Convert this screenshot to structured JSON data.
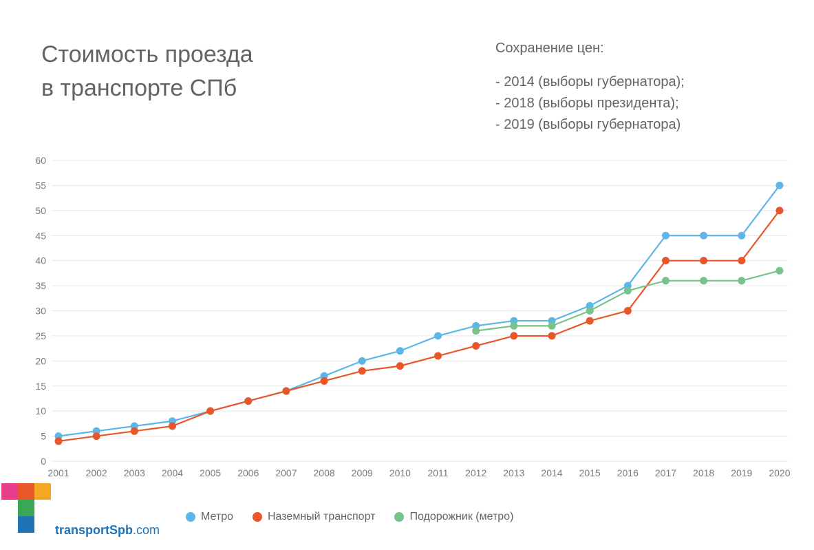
{
  "title_line1": "Стоимость проезда",
  "title_line2": "в транспорте СПб",
  "notes": {
    "heading": "Сохранение цен:",
    "items": [
      "- 2014 (выборы губернатора);",
      "- 2018 (выборы президента);",
      "- 2019 (выборы губернатора)"
    ]
  },
  "chart": {
    "type": "line",
    "background_color": "#ffffff",
    "grid_color": "#e6e6e6",
    "axis_text_color": "#7a7a7a",
    "axis_fontsize": 14,
    "xlim": [
      2001,
      2020
    ],
    "ylim": [
      0,
      60
    ],
    "ytick_step": 5,
    "yticks": [
      0,
      5,
      10,
      15,
      20,
      25,
      30,
      35,
      40,
      45,
      50,
      55,
      60
    ],
    "categories": [
      2001,
      2002,
      2003,
      2004,
      2005,
      2006,
      2007,
      2008,
      2009,
      2010,
      2011,
      2012,
      2013,
      2014,
      2015,
      2016,
      2017,
      2018,
      2019,
      2020
    ],
    "marker_radius": 5.5,
    "line_width": 2.2,
    "series": [
      {
        "key": "metro",
        "label": "Метро",
        "color": "#5cb6e8",
        "values": [
          5,
          6,
          7,
          8,
          10,
          12,
          14,
          17,
          20,
          22,
          25,
          27,
          28,
          28,
          31,
          35,
          45,
          45,
          45,
          55
        ]
      },
      {
        "key": "ground",
        "label": "Наземный транспорт",
        "color": "#e8572a",
        "values": [
          4,
          5,
          6,
          7,
          10,
          12,
          14,
          16,
          18,
          19,
          21,
          23,
          25,
          25,
          28,
          30,
          40,
          40,
          40,
          50
        ]
      },
      {
        "key": "podorozhnik",
        "label": "Подорожник (метро)",
        "color": "#78c28c",
        "values": [
          null,
          null,
          null,
          null,
          null,
          null,
          null,
          null,
          null,
          null,
          null,
          26,
          27,
          27,
          30,
          34,
          36,
          36,
          36,
          38
        ]
      }
    ]
  },
  "legend": {
    "items": [
      {
        "label": "Метро",
        "color": "#5cb6e8"
      },
      {
        "label": "Наземный транспорт",
        "color": "#e8572a"
      },
      {
        "label": "Подорожник (метро)",
        "color": "#78c28c"
      }
    ]
  },
  "logo": {
    "squares": [
      [
        "#e83e8c",
        "#e8572a",
        "#f5a623"
      ],
      [
        null,
        "#3aa757",
        null
      ],
      [
        null,
        "#1f73b7",
        null
      ]
    ],
    "text_main": "transportSpb",
    "text_suffix": ".com",
    "text_color": "#1f73b7"
  }
}
